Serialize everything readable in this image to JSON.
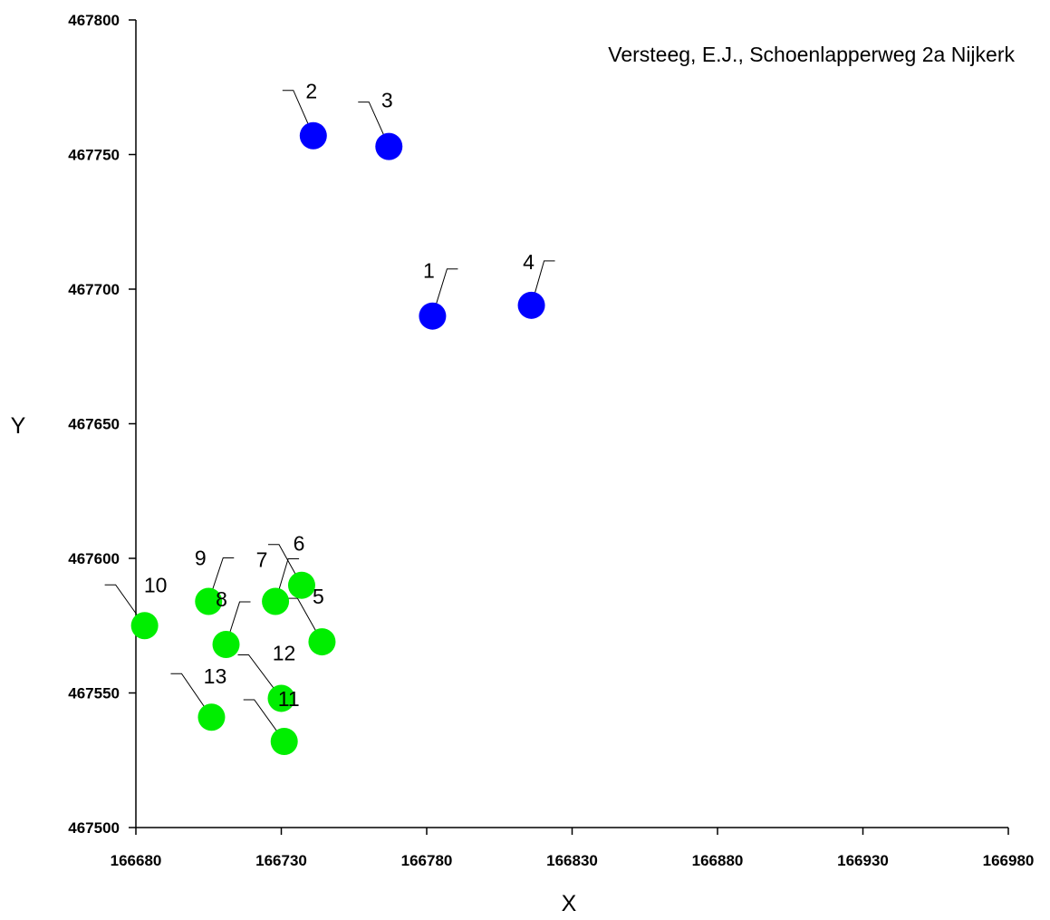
{
  "chart_data": {
    "type": "scatter",
    "title": "Versteeg, E.J., Schoenlapperweg 2a Nijkerk",
    "xlabel": "X",
    "ylabel": "Y",
    "xlim": [
      166680,
      166980
    ],
    "ylim": [
      467500,
      467800
    ],
    "x_ticks": [
      "166680",
      "166730",
      "166780",
      "166830",
      "166880",
      "166930",
      "166980"
    ],
    "y_ticks": [
      "467500",
      "467550",
      "467600",
      "467650",
      "467700",
      "467750",
      "467800"
    ],
    "grid": false,
    "series": [
      {
        "color": "#0000ff",
        "points": [
          {
            "label": "1",
            "x": 166782,
            "y": 467690
          },
          {
            "label": "2",
            "x": 166741,
            "y": 467757
          },
          {
            "label": "3",
            "x": 166767,
            "y": 467753
          },
          {
            "label": "4",
            "x": 166816,
            "y": 467694
          }
        ]
      },
      {
        "color": "#00ee00",
        "points": [
          {
            "label": "5",
            "x": 166744,
            "y": 467569
          },
          {
            "label": "6",
            "x": 166737,
            "y": 467590
          },
          {
            "label": "7",
            "x": 166728,
            "y": 467584
          },
          {
            "label": "8",
            "x": 166711,
            "y": 467568
          },
          {
            "label": "9",
            "x": 166705,
            "y": 467584
          },
          {
            "label": "10",
            "x": 166683,
            "y": 467575
          },
          {
            "label": "11",
            "x": 166731,
            "y": 467532
          },
          {
            "label": "12",
            "x": 166730,
            "y": 467548
          },
          {
            "label": "13",
            "x": 166706,
            "y": 467541
          }
        ]
      }
    ]
  }
}
